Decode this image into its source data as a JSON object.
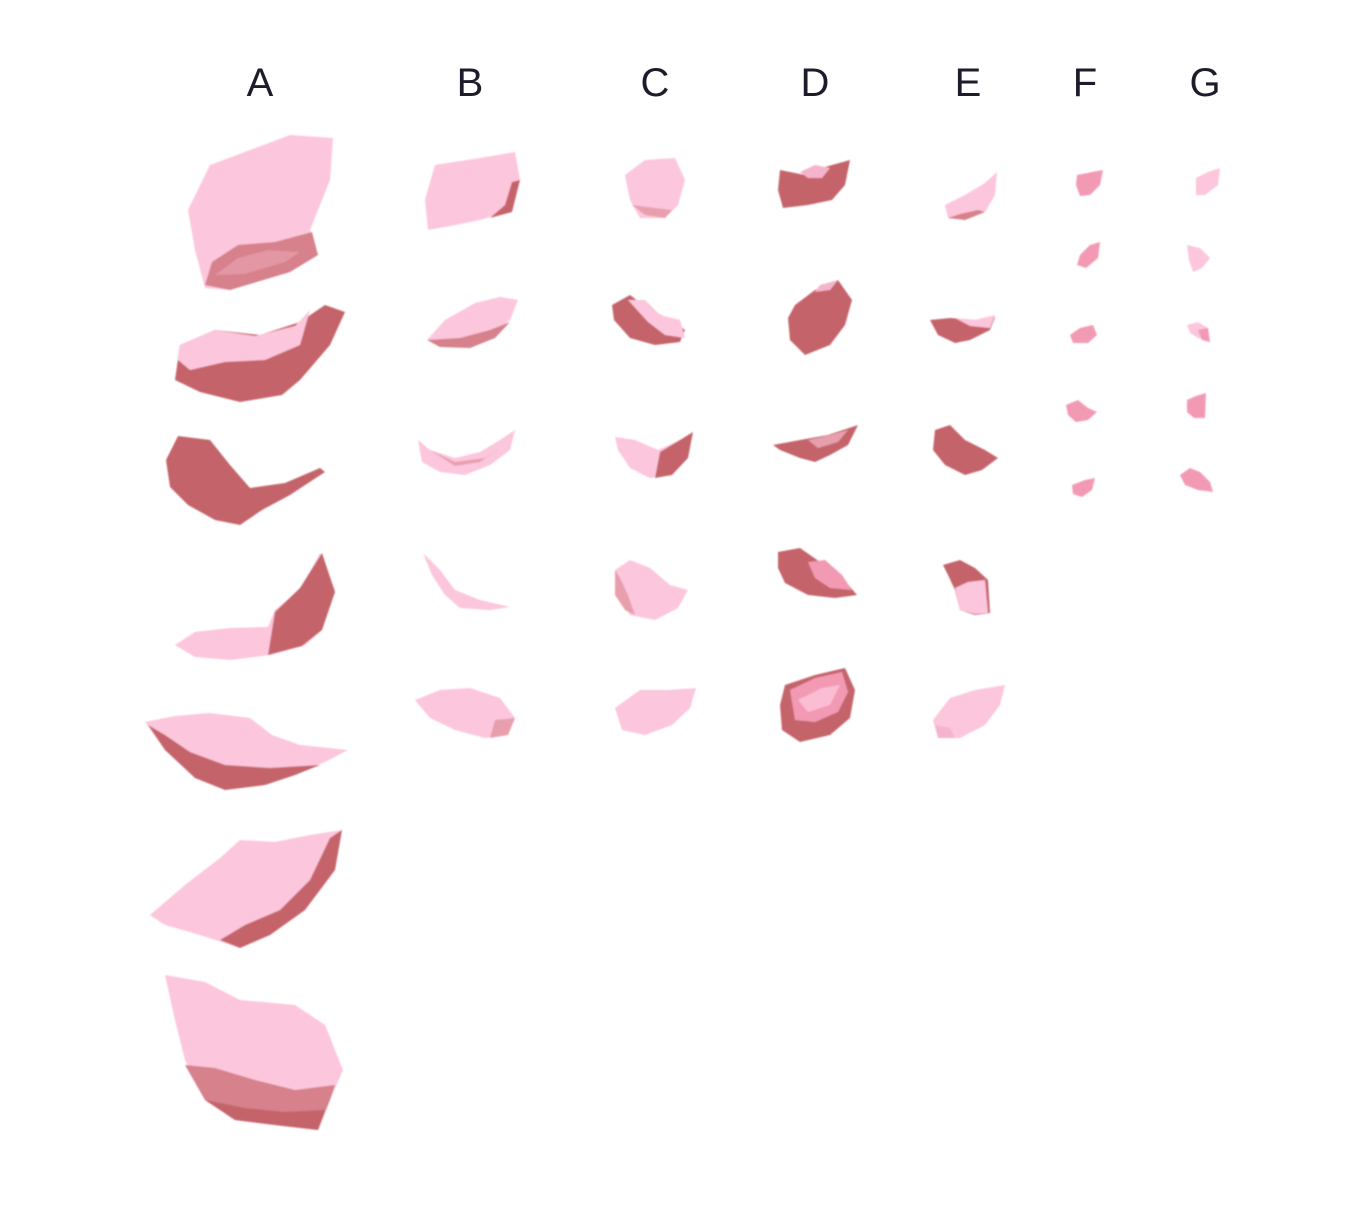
{
  "columns": [
    {
      "label": "A"
    },
    {
      "label": "B"
    },
    {
      "label": "C"
    },
    {
      "label": "D"
    },
    {
      "label": "E"
    },
    {
      "label": "F"
    },
    {
      "label": "G"
    }
  ],
  "colors": {
    "background": "#ffffff",
    "label": "#1d1c2a",
    "petal_light": "#fcc6dc",
    "petal_light_edge": "#f5b4cc",
    "petal_dark": "#c5636a",
    "petal_medium": "#f29ab4"
  }
}
